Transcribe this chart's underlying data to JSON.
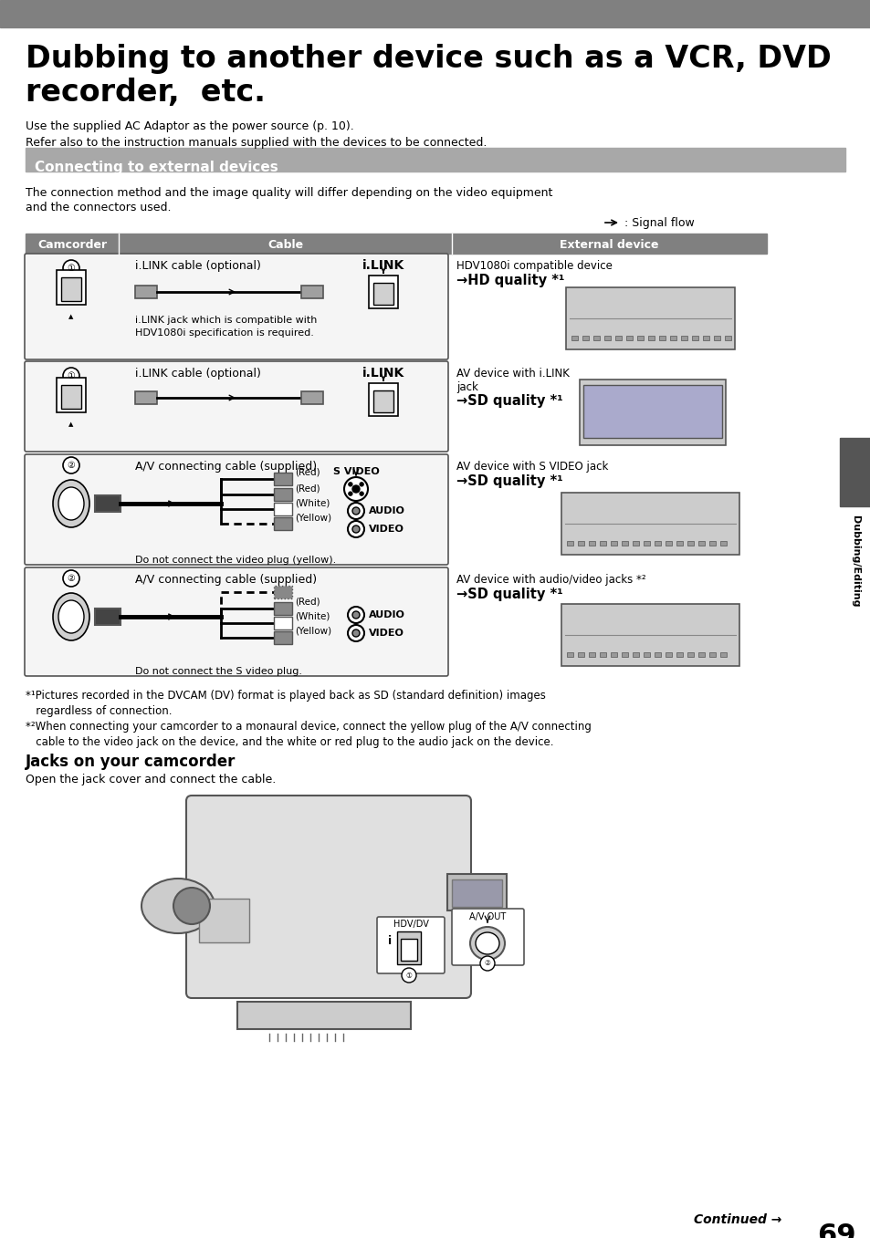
{
  "bg_color": "#ffffff",
  "header_bar_color": "#808080",
  "section_header_bg": "#a8a8a8",
  "table_header_bg": "#808080",
  "title_line1": "Dubbing to another device such as a VCR, DVD",
  "title_line2": "recorder,  etc.",
  "subtitle_lines": [
    "Use the supplied AC Adaptor as the power source (p. 10).",
    "Refer also to the instruction manuals supplied with the devices to be connected."
  ],
  "section_header": "Connecting to external devices",
  "section_desc_line1": "The connection method and the image quality will differ depending on the video equipment",
  "section_desc_line2": "and the connectors used.",
  "signal_flow_text": ": Signal flow",
  "table_headers": [
    "Camcorder",
    "Cable",
    "External device"
  ],
  "col_bounds": [
    28,
    130,
    495,
    840
  ],
  "footnotes": [
    "*¹Pictures recorded in the DVCAM (DV) format is played back as SD (standard definition) images",
    "   regardless of connection.",
    "*²When connecting your camcorder to a monaural device, connect the yellow plug of the A/V connecting",
    "   cable to the video jack on the device, and the white or red plug to the audio jack on the device."
  ],
  "jacks_header": "Jacks on your camcorder",
  "jacks_desc": "Open the jack cover and connect the cable.",
  "sidebar_text": "Dubbing/Editing",
  "sidebar_color": "#555555",
  "page_number": "69",
  "continued_text": "Continued →"
}
